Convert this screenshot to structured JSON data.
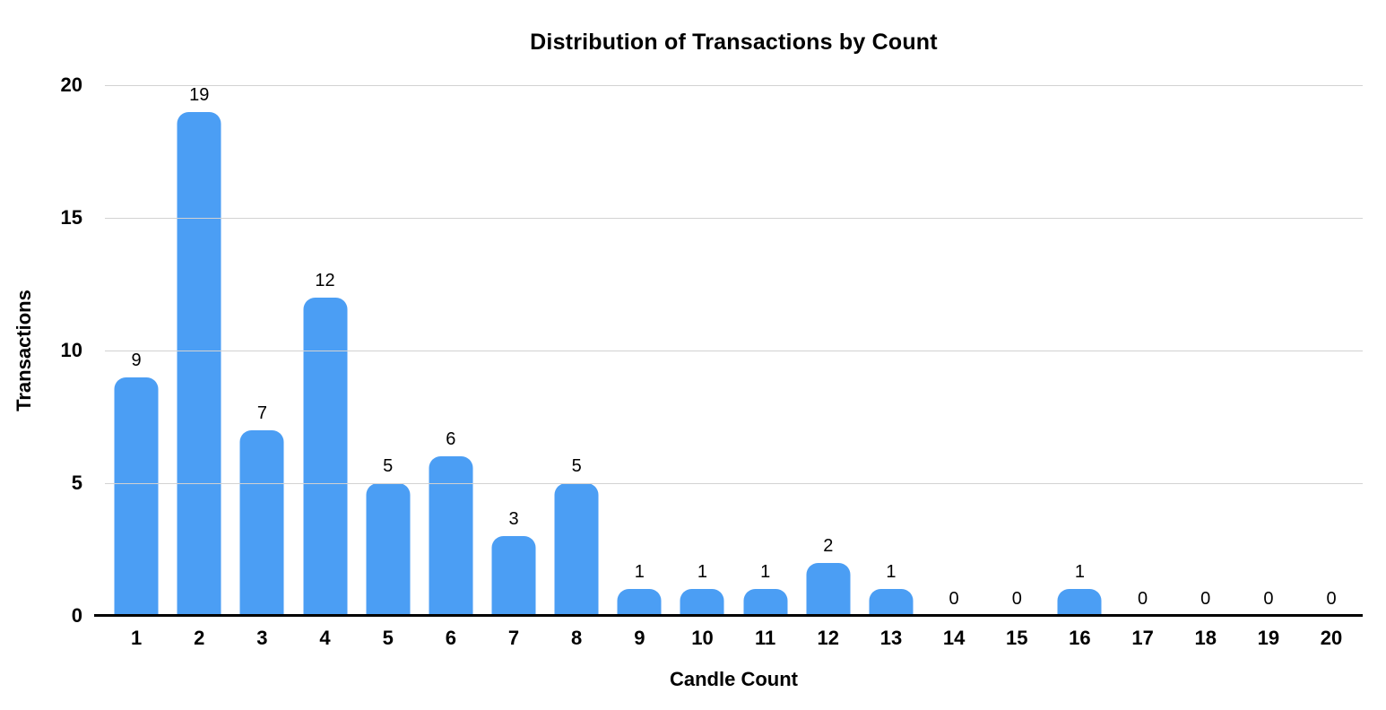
{
  "chart_data": {
    "type": "bar",
    "title": "Distribution of Transactions by Count",
    "xlabel": "Candle Count",
    "ylabel": "Transactions",
    "categories": [
      "1",
      "2",
      "3",
      "4",
      "5",
      "6",
      "7",
      "8",
      "9",
      "10",
      "11",
      "12",
      "13",
      "14",
      "15",
      "16",
      "17",
      "18",
      "19",
      "20"
    ],
    "values": [
      9,
      19,
      7,
      12,
      5,
      6,
      3,
      5,
      1,
      1,
      1,
      2,
      1,
      0,
      0,
      1,
      0,
      0,
      0,
      0
    ],
    "data_labels_shown": true,
    "yticks": [
      0,
      5,
      10,
      15,
      20
    ],
    "ylim": [
      0,
      20
    ],
    "grid": true,
    "legend_position": "none",
    "bar_color": "#4B9EF4",
    "gridline_color": "#D2D2D2",
    "axis_line_color": "#000000",
    "text_color": "#000000",
    "background_color": "#FFFFFF"
  }
}
